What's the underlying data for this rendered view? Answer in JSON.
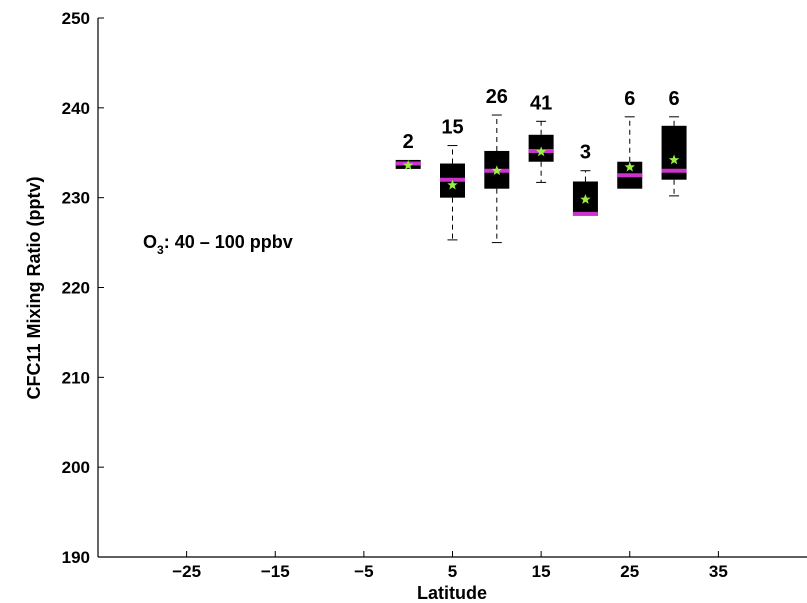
{
  "chart_data": {
    "type": "box",
    "title": "",
    "xlabel": "Latitude",
    "ylabel": "CFC11 Mixing Ratio (pptv)",
    "xlim": [
      -35,
      45
    ],
    "ylim": [
      190,
      250
    ],
    "xticks": [
      -25,
      -15,
      -5,
      5,
      15,
      25,
      35
    ],
    "xtick_labels": [
      "−25",
      "−15",
      "−5",
      "5",
      "15",
      "25",
      "35"
    ],
    "yticks": [
      190,
      200,
      210,
      220,
      230,
      240,
      250
    ],
    "ytick_labels": [
      "190",
      "200",
      "210",
      "220",
      "230",
      "240",
      "250"
    ],
    "annotation": {
      "o_text": "O",
      "subscript": "3",
      "rest": ": 40 – 100 ppbv"
    },
    "colors": {
      "box": "#000000",
      "median": "#cc33cc",
      "mean_marker": "#99ee44",
      "whisker": "#000000"
    },
    "boxes": [
      {
        "x": 0,
        "n": "2",
        "whisker_low": 233.2,
        "q1": 233.2,
        "median": 233.8,
        "q3": 234.2,
        "whisker_high": 234.2,
        "mean": 233.6
      },
      {
        "x": 5,
        "n": "15",
        "whisker_low": 225.3,
        "q1": 230.0,
        "median": 232.0,
        "q3": 233.8,
        "whisker_high": 235.8,
        "mean": 231.4
      },
      {
        "x": 10,
        "n": "26",
        "whisker_low": 225.0,
        "q1": 231.0,
        "median": 233.0,
        "q3": 235.2,
        "whisker_high": 239.2,
        "mean": 233.0
      },
      {
        "x": 15,
        "n": "41",
        "whisker_low": 231.7,
        "q1": 234.0,
        "median": 235.2,
        "q3": 237.0,
        "whisker_high": 238.5,
        "mean": 235.1
      },
      {
        "x": 20,
        "n": "3",
        "whisker_low": 228.0,
        "q1": 228.0,
        "median": 228.2,
        "q3": 231.8,
        "whisker_high": 233.0,
        "mean": 229.8
      },
      {
        "x": 25,
        "n": "6",
        "whisker_low": 231.0,
        "q1": 231.0,
        "median": 232.5,
        "q3": 234.0,
        "whisker_high": 239.0,
        "mean": 233.4
      },
      {
        "x": 30,
        "n": "6",
        "whisker_low": 230.2,
        "q1": 232.0,
        "median": 233.0,
        "q3": 238.0,
        "whisker_high": 239.0,
        "mean": 234.2
      }
    ]
  }
}
